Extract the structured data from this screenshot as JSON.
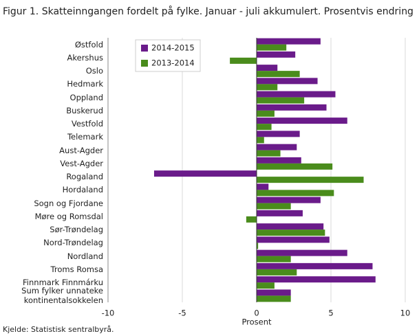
{
  "chart_data": {
    "type": "barh",
    "title": "Figur 1. Skatteinngangen fordelt på fylke. Januar - juli akkumulert. Prosentvis endring",
    "x_label": "Prosent",
    "source": "Kjelde: Statistisk sentralbyrå.",
    "categories": [
      "Østfold",
      "Akershus",
      "Oslo",
      "Hedmark",
      "Oppland",
      "Buskerud",
      "Vestfold",
      "Telemark",
      "Aust-Agder",
      "Vest-Agder",
      "Rogaland",
      "Hordaland",
      "Sogn og Fjordane",
      "Møre og Romsdal",
      "Sør-Trøndelag",
      "Nord-Trøndelag",
      "Nordland",
      "Troms Romsa",
      "Finnmark Finnmárku",
      "Sum fylker unnateke\nkontinentalsokkelen"
    ],
    "series": [
      {
        "name": "2014-2015",
        "color": "#6a1b8a",
        "values": [
          4.3,
          2.6,
          1.4,
          4.1,
          5.3,
          4.7,
          6.1,
          2.9,
          2.7,
          3.0,
          -6.9,
          0.8,
          4.3,
          3.1,
          4.5,
          4.9,
          6.1,
          7.8,
          8.0,
          2.3
        ]
      },
      {
        "name": "2013-2014",
        "color": "#4a8c1c",
        "values": [
          2.0,
          -1.8,
          2.9,
          1.4,
          3.2,
          1.2,
          1.0,
          0.5,
          1.6,
          5.1,
          7.2,
          5.2,
          2.3,
          -0.7,
          4.6,
          0.1,
          2.3,
          2.7,
          1.2,
          2.3
        ]
      }
    ],
    "xlim": [
      -10,
      10
    ],
    "xticks": [
      -10,
      -5,
      0,
      5,
      10
    ],
    "grid": true
  }
}
